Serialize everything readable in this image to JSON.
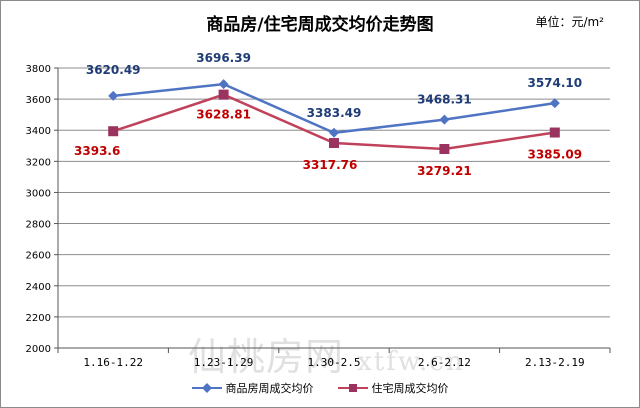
{
  "chart_data": {
    "type": "line",
    "title": "商品房/住宅周成交均价走势图",
    "unit_label": "单位：元/m²",
    "categories": [
      "1.16-1.22",
      "1.23-1.29",
      "1.30-2.5",
      "2.6-2.12",
      "2.13-2.19"
    ],
    "y_ticks": [
      "3800",
      "3600",
      "3400",
      "3200",
      "3000",
      "2800",
      "2600",
      "2400",
      "2200",
      "2000"
    ],
    "ylim": [
      2000,
      3800
    ],
    "series": [
      {
        "name": "商品房周成交均价",
        "color": "#4F74C3",
        "label_color": "#1F3C77",
        "marker": "diamond",
        "values": [
          3620.49,
          3696.39,
          3383.49,
          3468.31,
          3574.1
        ],
        "labels": [
          "3620.49",
          "3696.39",
          "3383.49",
          "3468.31",
          "3574.10"
        ]
      },
      {
        "name": "住宅周成交均价",
        "color": "#C0415A",
        "label_color": "#C00000",
        "marker": "square",
        "values": [
          3393.6,
          3628.81,
          3317.76,
          3279.21,
          3385.09
        ],
        "labels": [
          "3393.6",
          "3628.81",
          "3317.76",
          "3279.21",
          "3385.09"
        ]
      }
    ]
  },
  "watermark": {
    "site_name": "仙桃房网",
    "url": "xtfw.cn"
  }
}
